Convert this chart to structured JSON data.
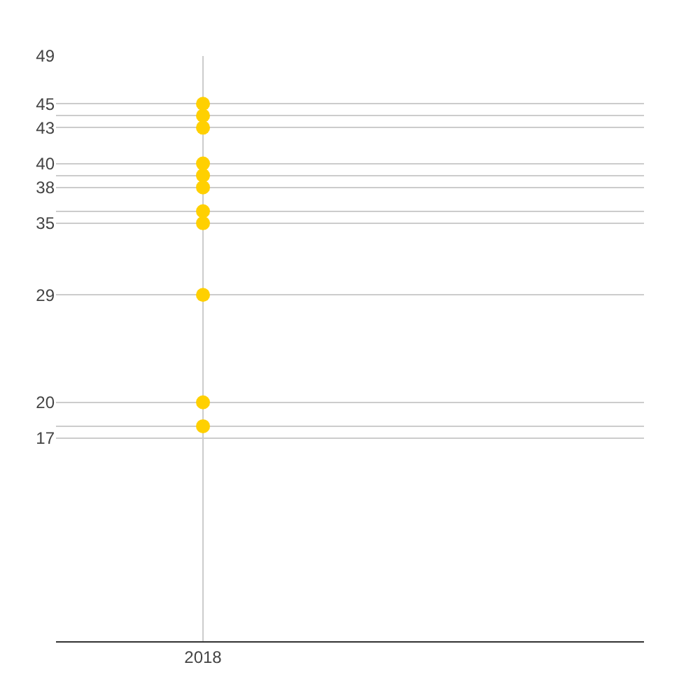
{
  "chart_data": {
    "type": "scatter",
    "categories": [
      "2018"
    ],
    "series": [
      {
        "color": "#ffd000",
        "values": [
          45
        ]
      },
      {
        "color": "#ffd000",
        "values": [
          44
        ]
      },
      {
        "color": "#ffd000",
        "values": [
          43
        ]
      },
      {
        "color": "#ffd000",
        "values": [
          40
        ]
      },
      {
        "color": "#ffd000",
        "values": [
          39
        ]
      },
      {
        "color": "#ffd000",
        "values": [
          38
        ]
      },
      {
        "color": "#ffd000",
        "values": [
          36
        ]
      },
      {
        "color": "#ffd000",
        "values": [
          35
        ]
      },
      {
        "color": "#ffd000",
        "values": [
          29
        ]
      },
      {
        "color": "#ffd000",
        "values": [
          20
        ]
      },
      {
        "color": "#ffd000",
        "values": [
          18
        ]
      }
    ],
    "ylim": [
      0,
      49
    ],
    "yticks": [
      49,
      45,
      {
        "value": 44,
        "label": null
      },
      43,
      40,
      {
        "value": 39,
        "label": null
      },
      38,
      {
        "value": 36,
        "label": null
      },
      35,
      29,
      20,
      {
        "value": 18,
        "label": null
      },
      17
    ],
    "grid": true,
    "marker": "circle"
  }
}
